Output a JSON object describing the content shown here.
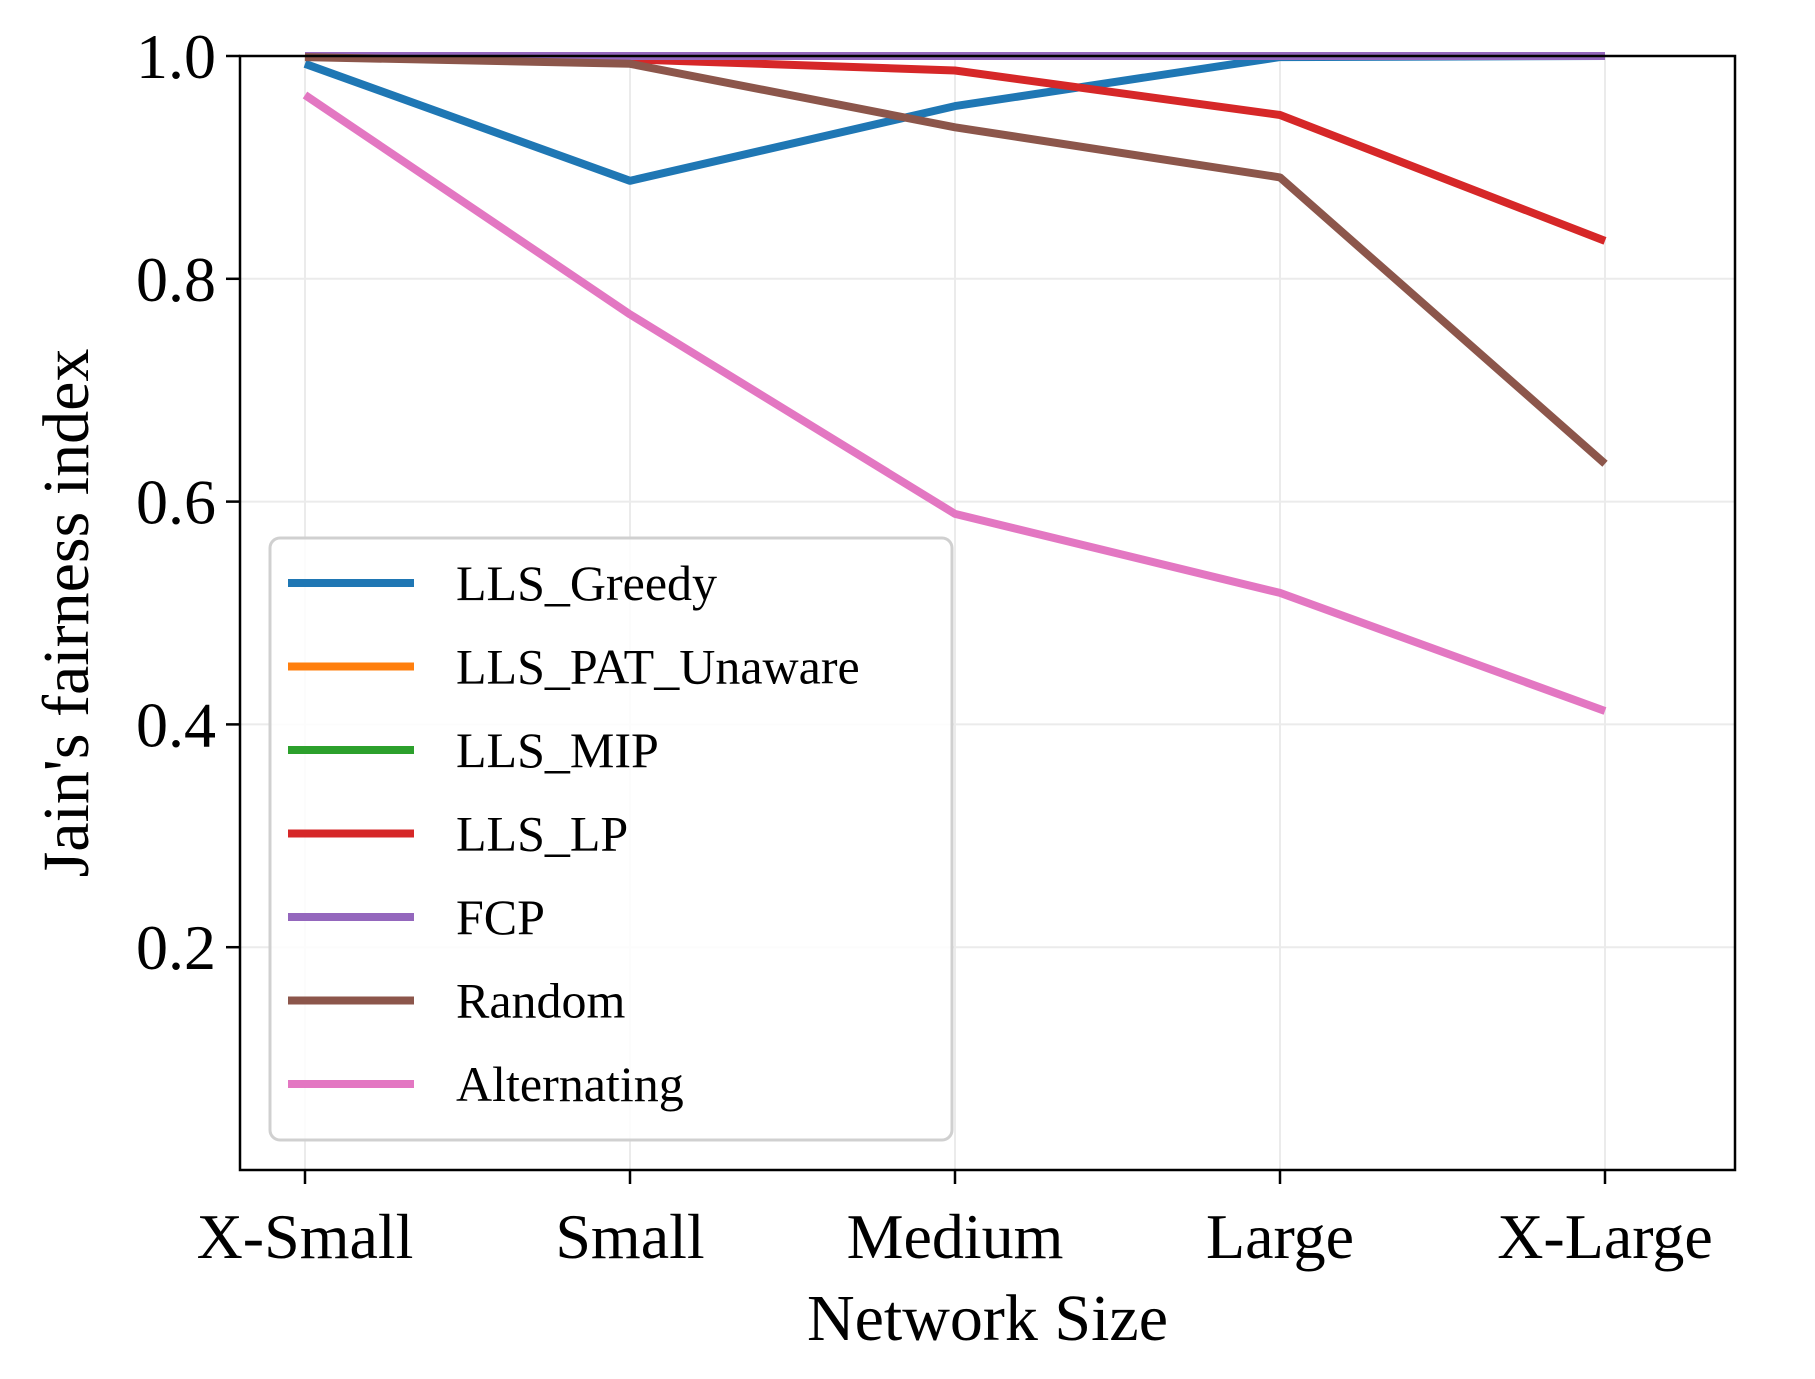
{
  "chart_data": {
    "type": "line",
    "categories": [
      "X-Small",
      "Small",
      "Medium",
      "Large",
      "X-Large"
    ],
    "xlabel": "Network Size",
    "ylabel": "Jain's fairness index",
    "ylim": [
      0.0,
      1.0
    ],
    "yticks": [
      "0.2",
      "0.4",
      "0.6",
      "0.8",
      "1.0"
    ],
    "grid": true,
    "legend_position": "lower-left",
    "series": [
      {
        "name": "LLS_Greedy",
        "color": "#1f77b4",
        "values": [
          0.993,
          0.888,
          0.955,
          0.999,
          1.0
        ]
      },
      {
        "name": "LLS_PAT_Unaware",
        "color": "#ff7f0e",
        "values": [
          1.0,
          1.0,
          1.0,
          1.0,
          1.0
        ]
      },
      {
        "name": "LLS_MIP",
        "color": "#2ca02c",
        "values": [
          1.0,
          1.0,
          1.0,
          1.0,
          1.0
        ]
      },
      {
        "name": "LLS_LP",
        "color": "#d62728",
        "values": [
          1.0,
          0.997,
          0.987,
          0.947,
          0.834
        ]
      },
      {
        "name": "FCP",
        "color": "#9467bd",
        "values": [
          1.0,
          1.0,
          1.0,
          1.0,
          1.0
        ]
      },
      {
        "name": "Random",
        "color": "#8c564b",
        "values": [
          0.999,
          0.993,
          0.936,
          0.891,
          0.634
        ]
      },
      {
        "name": "Alternating",
        "color": "#e377c2",
        "values": [
          0.965,
          0.768,
          0.589,
          0.518,
          0.412
        ]
      }
    ]
  }
}
